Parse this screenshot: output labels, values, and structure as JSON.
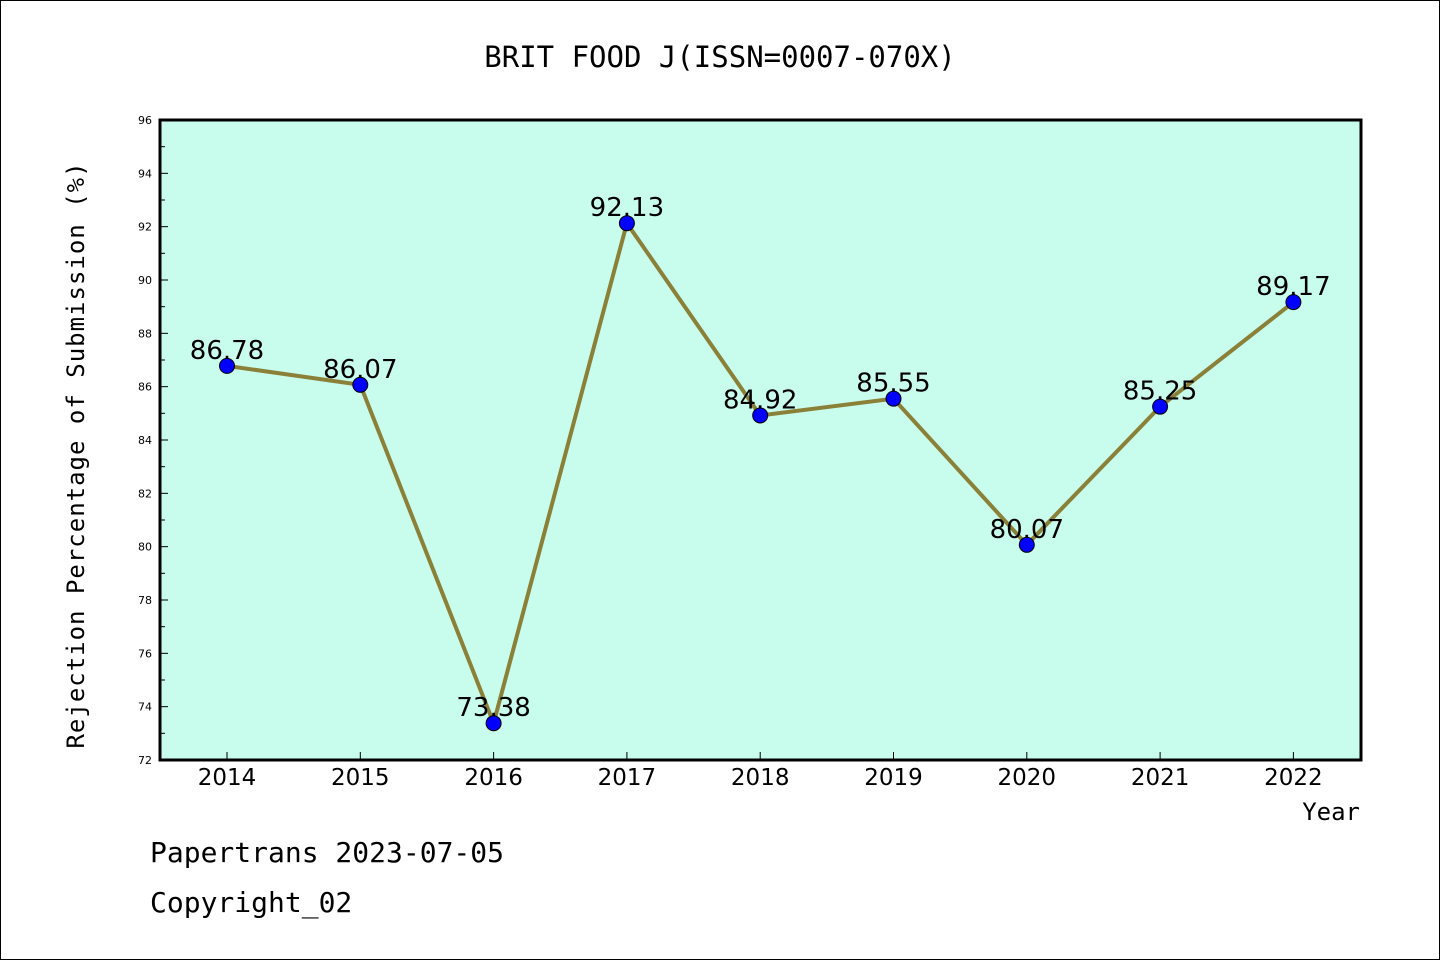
{
  "chart_data": {
    "type": "line",
    "title": "BRIT FOOD J(ISSN=0007-070X)",
    "xlabel": "Year",
    "ylabel": "Rejection Percentage of Submission (%)",
    "x": [
      "2014",
      "2015",
      "2016",
      "2017",
      "2018",
      "2019",
      "2020",
      "2021",
      "2022"
    ],
    "series": [
      {
        "values": [
          86.78,
          86.07,
          73.38,
          92.13,
          84.92,
          85.55,
          80.07,
          85.25,
          89.17
        ],
        "labels": [
          "86.78",
          "86.07",
          "73.38",
          "92.13",
          "84.92",
          "85.55",
          "80.07",
          "85.25",
          "89.17"
        ],
        "line_color": "#8b8038",
        "marker_color": "#0000ff"
      }
    ],
    "ylim": [
      72,
      96
    ],
    "yticks": [
      "72",
      "74",
      "76",
      "78",
      "80",
      "82",
      "84",
      "86",
      "88",
      "90",
      "92",
      "94",
      "96"
    ],
    "grid": false,
    "plot_background": "#c8fcec"
  },
  "footer": {
    "line1": "Papertrans 2023-07-05",
    "line2": "Copyright_02"
  }
}
